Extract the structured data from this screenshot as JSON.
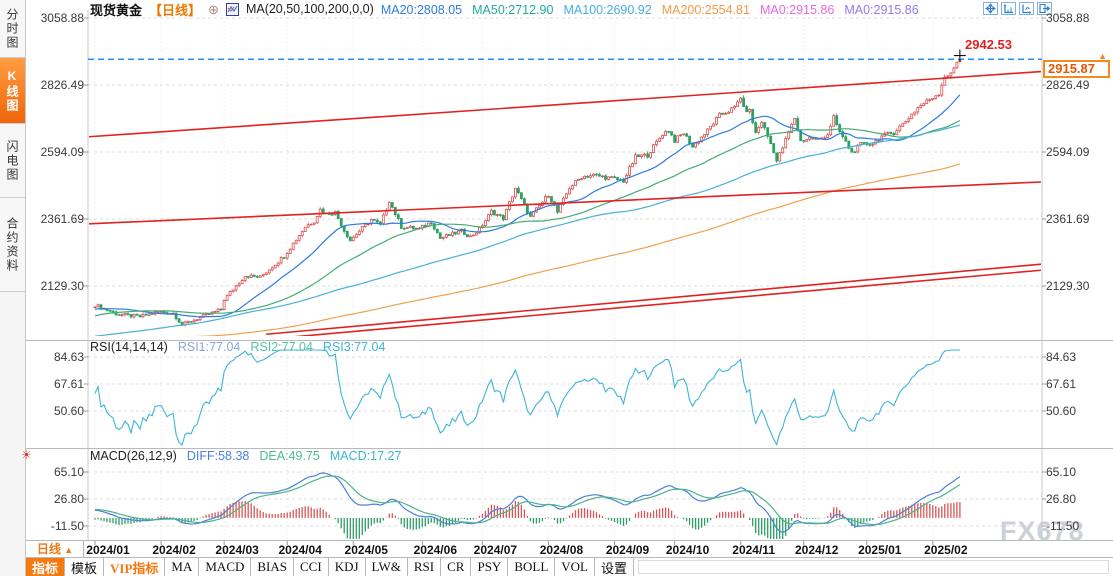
{
  "sidebar": {
    "items": [
      {
        "label": "分时图",
        "active": false
      },
      {
        "label": "K线图",
        "active": true
      },
      {
        "label": "闪电图",
        "active": false
      },
      {
        "label": "合约资料",
        "active": false
      }
    ]
  },
  "header": {
    "title": "现货黄金",
    "period": "【日线】",
    "collapse_icon": "circled-minus-icon",
    "indicator_icon": "candlestick-chart-icon",
    "indicator_label": "MA(20,50,100,200,0,0)",
    "ma_items": [
      {
        "text": "MA20:2808.05",
        "color": "#2f7be0"
      },
      {
        "text": "MA50:2712.90",
        "color": "#21ab9b"
      },
      {
        "text": "MA100:2690.92",
        "color": "#45aede"
      },
      {
        "text": "MA200:2554.81",
        "color": "#f29a4a"
      },
      {
        "text": "MA0:2915.86",
        "color": "#e46ae0"
      },
      {
        "text": "MA0:2915.86",
        "color": "#9579e8"
      }
    ]
  },
  "top_controls": {
    "icons": [
      "pan-icon",
      "axis-zoom-vertical-icon",
      "axis-zoom-horizontal-icon",
      "exit-right-icon"
    ],
    "accent_color": "#2a7fd0"
  },
  "price_markers": {
    "last_price": "2915.87",
    "session_high": "2942.53"
  },
  "rsi_panel": {
    "title": "RSI(14,14,14)",
    "values": [
      {
        "text": "RSI1:77.04",
        "color": "#8ca6d8"
      },
      {
        "text": "RSI2:77.04",
        "color": "#4fc4a0"
      },
      {
        "text": "RSI3:77.04",
        "color": "#3fb3d9"
      }
    ]
  },
  "macd_panel": {
    "title": "MACD(26,12,9)",
    "values": [
      {
        "text": "DIFF:58.38",
        "color": "#4a82e0"
      },
      {
        "text": "DEA:49.75",
        "color": "#4cbf8f"
      },
      {
        "text": "MACD:17.27",
        "color": "#39b3d6"
      }
    ]
  },
  "xaxis": {
    "period_label": "日线",
    "period_arrow": "▲"
  },
  "toolbar": {
    "items": [
      {
        "label": "指标",
        "state": "active"
      },
      {
        "label": "模板",
        "state": "normal"
      },
      {
        "label": "VIP指标",
        "state": "vip"
      },
      {
        "label": "MA",
        "state": "normal"
      },
      {
        "label": "MACD",
        "state": "normal"
      },
      {
        "label": "BIAS",
        "state": "normal"
      },
      {
        "label": "CCI",
        "state": "normal"
      },
      {
        "label": "KDJ",
        "state": "normal"
      },
      {
        "label": "LW&",
        "state": "normal"
      },
      {
        "label": "RSI",
        "state": "normal"
      },
      {
        "label": "CR",
        "state": "normal"
      },
      {
        "label": "PSY",
        "state": "normal"
      },
      {
        "label": "BOLL",
        "state": "normal"
      },
      {
        "label": "VOL",
        "state": "normal"
      },
      {
        "label": "设置",
        "state": "normal"
      }
    ]
  },
  "watermark": "FX678",
  "alert_icon": "sun-icon",
  "chart_data": {
    "type": "candlestick",
    "symbol": "现货黄金",
    "interval": "daily",
    "x_labels": [
      "2024/01",
      "2024/02",
      "2024/03",
      "2024/04",
      "2024/05",
      "2024/06",
      "2024/07",
      "2024/08",
      "2024/09",
      "2024/10",
      "2024/11",
      "2024/12",
      "2025/01",
      "2025/02"
    ],
    "month_start_days": [
      0,
      22,
      43,
      64,
      86,
      109,
      129,
      151,
      173,
      193,
      215,
      236,
      257,
      279
    ],
    "visible_days": 289,
    "price_axis_labels": [
      "3058.88",
      "2826.49",
      "2594.09",
      "2361.69",
      "2129.30"
    ],
    "current_price": 2915.87,
    "high_annotation": {
      "day": 288,
      "price": 2942.53
    },
    "last_candle": {
      "open": 2908.0,
      "close": 2915.86,
      "high": 2942.53,
      "low": 2901.0
    },
    "close_anchors": [
      [
        -220,
        1935
      ],
      [
        -180,
        1952
      ],
      [
        -150,
        1916
      ],
      [
        -120,
        1908
      ],
      [
        -95,
        1916
      ],
      [
        -70,
        1872
      ],
      [
        -58,
        1828
      ],
      [
        -45,
        1978
      ],
      [
        -35,
        2008
      ],
      [
        -28,
        2042
      ],
      [
        -20,
        2052
      ],
      [
        -12,
        2038
      ],
      [
        -5,
        2058
      ],
      [
        0,
        2063
      ],
      [
        8,
        2030
      ],
      [
        15,
        2023
      ],
      [
        21,
        2040
      ],
      [
        26,
        2035
      ],
      [
        29,
        1995
      ],
      [
        36,
        2024
      ],
      [
        42,
        2048
      ],
      [
        43,
        2083
      ],
      [
        50,
        2165
      ],
      [
        55,
        2160
      ],
      [
        63,
        2233
      ],
      [
        70,
        2335
      ],
      [
        73,
        2355
      ],
      [
        75,
        2395
      ],
      [
        77,
        2380
      ],
      [
        80,
        2385
      ],
      [
        83,
        2322
      ],
      [
        85,
        2288
      ],
      [
        88,
        2320
      ],
      [
        92,
        2360
      ],
      [
        95,
        2342
      ],
      [
        98,
        2425
      ],
      [
        102,
        2335
      ],
      [
        108,
        2327
      ],
      [
        112,
        2352
      ],
      [
        115,
        2295
      ],
      [
        122,
        2320
      ],
      [
        125,
        2300
      ],
      [
        128,
        2326
      ],
      [
        132,
        2388
      ],
      [
        136,
        2364
      ],
      [
        140,
        2469
      ],
      [
        145,
        2368
      ],
      [
        151,
        2447
      ],
      [
        153,
        2408
      ],
      [
        154,
        2385
      ],
      [
        158,
        2470
      ],
      [
        162,
        2508
      ],
      [
        166,
        2514
      ],
      [
        172,
        2503
      ],
      [
        176,
        2494
      ],
      [
        180,
        2577
      ],
      [
        184,
        2584
      ],
      [
        189,
        2657
      ],
      [
        191,
        2670
      ],
      [
        193,
        2634
      ],
      [
        196,
        2660
      ],
      [
        199,
        2612
      ],
      [
        204,
        2668
      ],
      [
        208,
        2721
      ],
      [
        213,
        2747
      ],
      [
        215,
        2786
      ],
      [
        216,
        2744
      ],
      [
        218,
        2736
      ],
      [
        220,
        2660
      ],
      [
        222,
        2700
      ],
      [
        226,
        2598
      ],
      [
        227,
        2563
      ],
      [
        229,
        2610
      ],
      [
        233,
        2712
      ],
      [
        235,
        2632
      ],
      [
        238,
        2643
      ],
      [
        241,
        2636
      ],
      [
        244,
        2656
      ],
      [
        246,
        2716
      ],
      [
        247,
        2682
      ],
      [
        252,
        2592
      ],
      [
        255,
        2620
      ],
      [
        259,
        2624
      ],
      [
        262,
        2648
      ],
      [
        266,
        2662
      ],
      [
        270,
        2702
      ],
      [
        274,
        2748
      ],
      [
        277,
        2770
      ],
      [
        281,
        2798
      ],
      [
        283,
        2858
      ],
      [
        285,
        2862
      ],
      [
        287,
        2908
      ],
      [
        288,
        2915.86
      ]
    ],
    "moving_averages": [
      {
        "period": 20,
        "color": "#2f7be0",
        "value": 2808.05
      },
      {
        "period": 50,
        "color": "#43ad74",
        "value": 2712.9
      },
      {
        "period": 100,
        "color": "#49b0d8",
        "value": 2690.92
      },
      {
        "period": 200,
        "color": "#f2a050",
        "value": 2554.81
      }
    ],
    "rsi": {
      "periods": [
        14,
        14,
        14
      ],
      "axis_labels": [
        "84.63",
        "67.61",
        "50.60"
      ],
      "line_color": "#3fb3d9",
      "value": 77.04
    },
    "macd": {
      "slow": 26,
      "fast": 12,
      "signal": 9,
      "axis_labels": [
        "65.10",
        "26.80",
        "-11.50"
      ],
      "diff_color": "#4a82d8",
      "dea_color": "#4db389",
      "hist_up_color": "#d85555",
      "hist_down_color": "#2f9e66",
      "diff": 58.38,
      "dea": 49.75,
      "macd": 17.27
    },
    "trend_lines": [
      {
        "from_day": -2,
        "from_price": 2647,
        "to_day": 315,
        "to_price": 2873,
        "color": "#e12222"
      },
      {
        "from_day": -2,
        "from_price": 2345,
        "to_day": 315,
        "to_price": 2490,
        "color": "#e12222"
      },
      {
        "from_day": 57,
        "from_price": 1962,
        "to_day": 315,
        "to_price": 2205,
        "color": "#e12222"
      },
      {
        "from_day": 63,
        "from_price": 1950,
        "to_day": 315,
        "to_price": 2184,
        "color": "#e12222"
      }
    ],
    "current_price_line_color": "#1e90ff",
    "candle_up_color": "#d8504f",
    "candle_down_color": "#2fa163"
  }
}
